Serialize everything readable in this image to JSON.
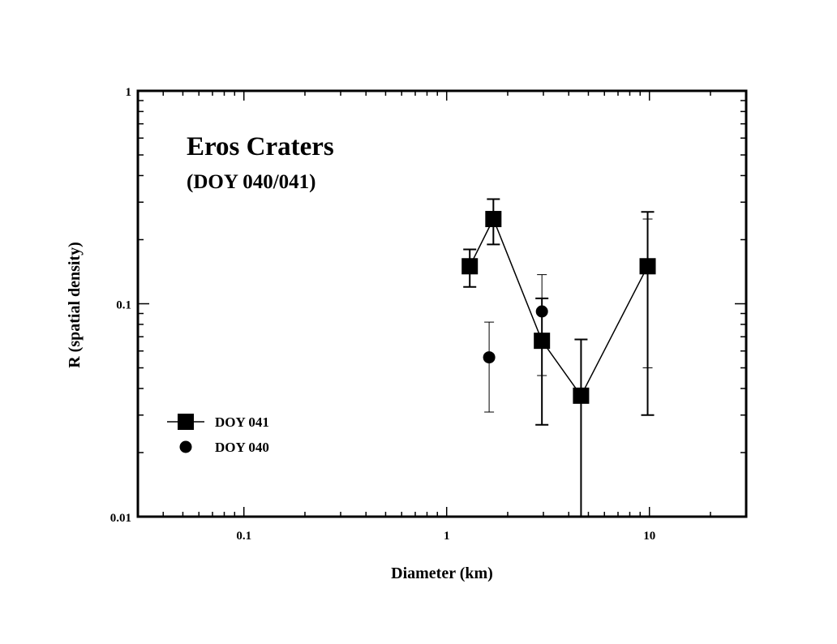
{
  "chart_data": {
    "type": "scatter",
    "title": "Eros Craters",
    "subtitle": "(DOY 040/041)",
    "xlabel": "Diameter (km)",
    "ylabel": "R (spatial density)",
    "xscale": "log",
    "yscale": "log",
    "xlim": [
      0.03,
      30
    ],
    "ylim": [
      0.01,
      1
    ],
    "x_tick_labels": [
      {
        "value": 0.1,
        "label": "0.1"
      },
      {
        "value": 1,
        "label": "1"
      },
      {
        "value": 10,
        "label": "10"
      }
    ],
    "y_tick_labels": [
      {
        "value": 0.01,
        "label": "0.01"
      },
      {
        "value": 0.1,
        "label": "0.1"
      },
      {
        "value": 1,
        "label": "1"
      }
    ],
    "grid": false,
    "legend_position": "bottom-left",
    "series": [
      {
        "name": "DOY 041",
        "marker": "square",
        "line": true,
        "color": "#000000",
        "points": [
          {
            "x": 1.3,
            "y": 0.15,
            "y_low": 0.12,
            "y_high": 0.18
          },
          {
            "x": 1.7,
            "y": 0.25,
            "y_low": 0.19,
            "y_high": 0.31
          },
          {
            "x": 2.95,
            "y": 0.067,
            "y_low": 0.027,
            "y_high": 0.106
          },
          {
            "x": 4.6,
            "y": 0.037,
            "y_low": 0.01,
            "y_high": 0.068
          },
          {
            "x": 9.8,
            "y": 0.15,
            "y_low": 0.03,
            "y_high": 0.27
          }
        ]
      },
      {
        "name": "DOY 040",
        "marker": "circle",
        "line": false,
        "color": "#000000",
        "points": [
          {
            "x": 1.62,
            "y": 0.056,
            "y_low": 0.031,
            "y_high": 0.082
          },
          {
            "x": 2.95,
            "y": 0.092,
            "y_low": 0.046,
            "y_high": 0.137
          },
          {
            "x": 9.8,
            "y": null,
            "y_low": 0.05,
            "y_high": 0.25
          }
        ]
      }
    ]
  }
}
